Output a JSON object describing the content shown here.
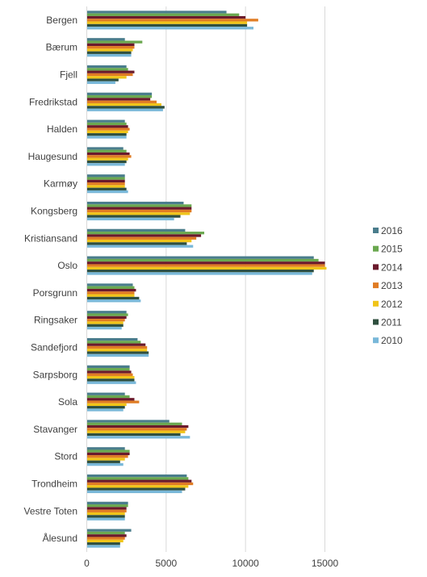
{
  "chart_data": {
    "type": "bar",
    "orientation": "horizontal",
    "title": "",
    "xlabel": "",
    "ylabel": "",
    "xlim": [
      0,
      17500
    ],
    "xticks": [
      0,
      5000,
      10000,
      15000
    ],
    "grid": true,
    "legend_position": "right",
    "categories": [
      "Bergen",
      "Bærum",
      "Fjell",
      "Fredrikstad",
      "Halden",
      "Haugesund",
      "Karmøy",
      "Kongsberg",
      "Kristiansand",
      "Oslo",
      "Porsgrunn",
      "Ringsaker",
      "Sandefjord",
      "Sarpsborg",
      "Sola",
      "Stavanger",
      "Stord",
      "Trondheim",
      "Vestre Toten",
      "Ålesund"
    ],
    "series": [
      {
        "name": "2016",
        "color": "#4a7d8c",
        "values": [
          8800,
          2400,
          2500,
          4100,
          2400,
          2300,
          2400,
          6100,
          6200,
          14300,
          2900,
          2500,
          3200,
          2700,
          2400,
          5200,
          2400,
          6300,
          2600,
          2800
        ]
      },
      {
        "name": "2015",
        "color": "#6aa84f",
        "values": [
          9600,
          3500,
          2600,
          4100,
          2500,
          2500,
          2400,
          6600,
          7400,
          14600,
          3000,
          2600,
          3400,
          2700,
          2700,
          6000,
          2700,
          6400,
          2600,
          2400
        ]
      },
      {
        "name": "2014",
        "color": "#6b1a2c",
        "values": [
          10000,
          3000,
          3000,
          4000,
          2600,
          2700,
          2400,
          6600,
          7200,
          15000,
          3100,
          2500,
          3700,
          2800,
          3000,
          6400,
          2700,
          6600,
          2500,
          2500
        ]
      },
      {
        "name": "2013",
        "color": "#e07c24",
        "values": [
          10800,
          3000,
          2900,
          4400,
          2700,
          2800,
          2400,
          6600,
          6900,
          15000,
          3000,
          2400,
          3800,
          2900,
          3300,
          6300,
          2600,
          6700,
          2500,
          2400
        ]
      },
      {
        "name": "2012",
        "color": "#f0c419",
        "values": [
          10100,
          2900,
          2500,
          4700,
          2600,
          2600,
          2400,
          6500,
          6600,
          15100,
          3000,
          2300,
          3800,
          3000,
          2500,
          6200,
          2400,
          6400,
          2400,
          2300
        ]
      },
      {
        "name": "2011",
        "color": "#2f4f3f",
        "values": [
          10100,
          2800,
          2000,
          4900,
          2500,
          2500,
          2500,
          5900,
          6300,
          14300,
          3300,
          2300,
          3900,
          3000,
          2400,
          5900,
          2100,
          6200,
          2400,
          2100
        ]
      },
      {
        "name": "2010",
        "color": "#79b8d9",
        "values": [
          10500,
          2800,
          1800,
          4800,
          2500,
          2400,
          2600,
          5500,
          6700,
          14200,
          3400,
          2200,
          3900,
          3100,
          2300,
          6500,
          2300,
          6000,
          2400,
          2100
        ]
      }
    ]
  }
}
